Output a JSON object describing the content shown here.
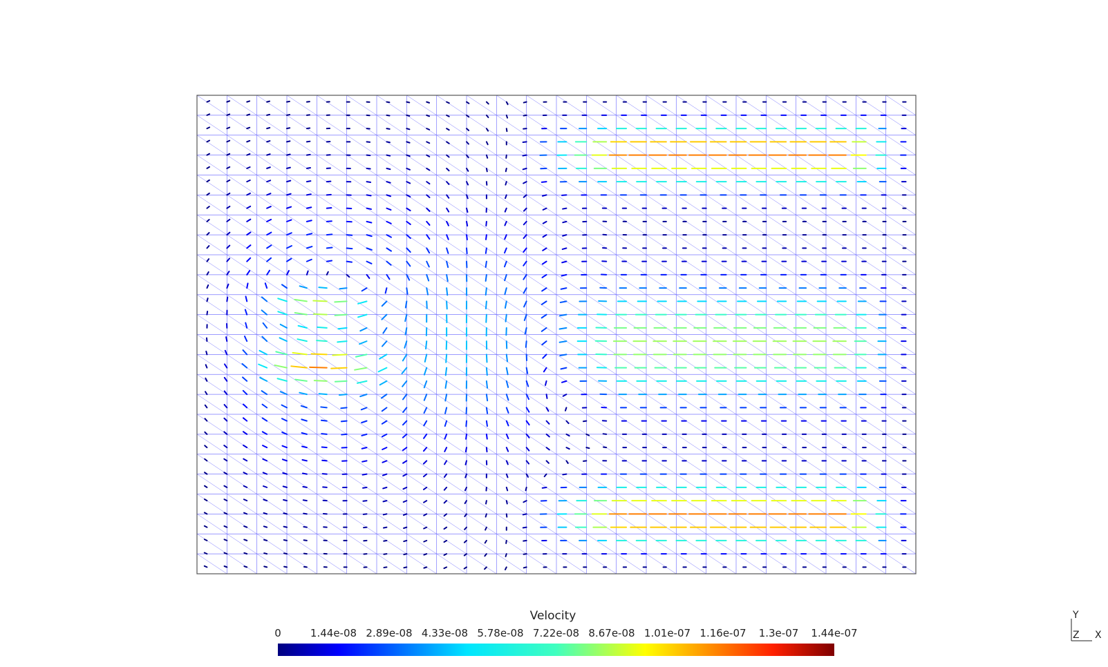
{
  "viewer": {
    "mesh_color": "#7a78ff",
    "frame_color": "#555555"
  },
  "legend": {
    "title": "Velocity",
    "ticks": [
      "0",
      "1.44e-08",
      "2.89e-08",
      "4.33e-08",
      "5.78e-08",
      "7.22e-08",
      "8.67e-08",
      "1.01e-07",
      "1.16e-07",
      "1.3e-07",
      "1.44e-07"
    ],
    "colormap": [
      "#00007f",
      "#0000ff",
      "#0080ff",
      "#00e5ff",
      "#40ffbf",
      "#9fff60",
      "#ffff00",
      "#ff9000",
      "#ff2000",
      "#7f0000"
    ]
  },
  "axes": {
    "y": "Y",
    "z": "Z",
    "x": "X"
  },
  "field": {
    "grid_cols": 24,
    "grid_rows": 24,
    "vmax": 1.44e-07
  }
}
